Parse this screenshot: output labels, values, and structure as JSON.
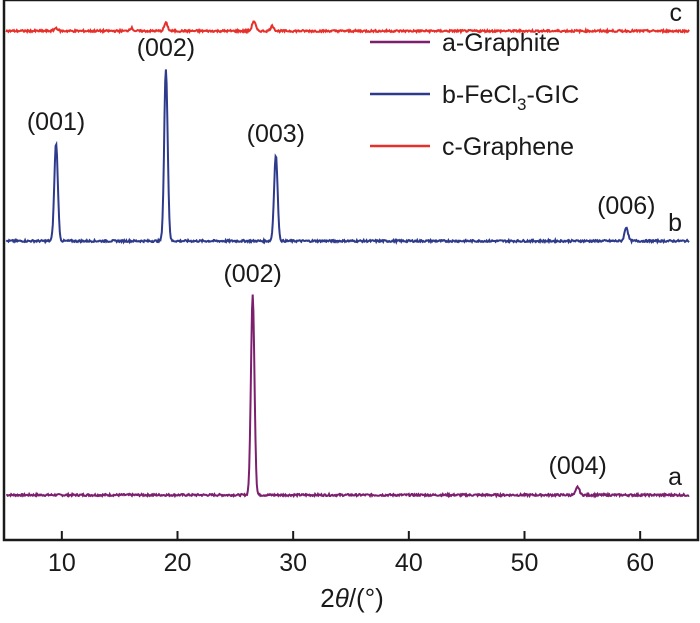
{
  "chart_data": {
    "type": "line",
    "xlabel_parts": [
      "2",
      "θ",
      "/(°)"
    ],
    "xlim": [
      5,
      65
    ],
    "x_ticks": [
      10,
      20,
      30,
      40,
      50,
      60
    ],
    "legend": {
      "position": "top-right",
      "entries": [
        {
          "series": "graphite",
          "parts": [
            "a-Graphite"
          ]
        },
        {
          "series": "gic",
          "parts": [
            "b-FeCl",
            "3",
            "-GIC"
          ]
        },
        {
          "series": "graphene",
          "parts": [
            "c-Graphene"
          ]
        }
      ]
    },
    "series": [
      {
        "id": "graphite",
        "letter": "a",
        "color": "#7b1f6e",
        "offset": 0.0,
        "peaks": [
          {
            "x": 26.5,
            "y": 100,
            "label": "(002)"
          },
          {
            "x": 54.6,
            "y": 4,
            "label": "(004)"
          }
        ]
      },
      {
        "id": "gic",
        "letter": "b",
        "color": "#2e3a8c",
        "offset": 127.0,
        "peaks": [
          {
            "x": 9.5,
            "y": 49,
            "label": "(001)"
          },
          {
            "x": 19.0,
            "y": 86,
            "label": "(002)"
          },
          {
            "x": 28.5,
            "y": 43,
            "label": "(003)"
          },
          {
            "x": 58.8,
            "y": 7,
            "label": "(006)"
          }
        ]
      },
      {
        "id": "graphene",
        "letter": "c",
        "color": "#e8302a",
        "offset": 232.0,
        "peaks": [
          {
            "x": 9.5,
            "y": 1.5
          },
          {
            "x": 16.0,
            "y": 1.5
          },
          {
            "x": 19.0,
            "y": 4
          },
          {
            "x": 26.6,
            "y": 5
          },
          {
            "x": 28.2,
            "y": 2.5
          }
        ]
      }
    ]
  }
}
